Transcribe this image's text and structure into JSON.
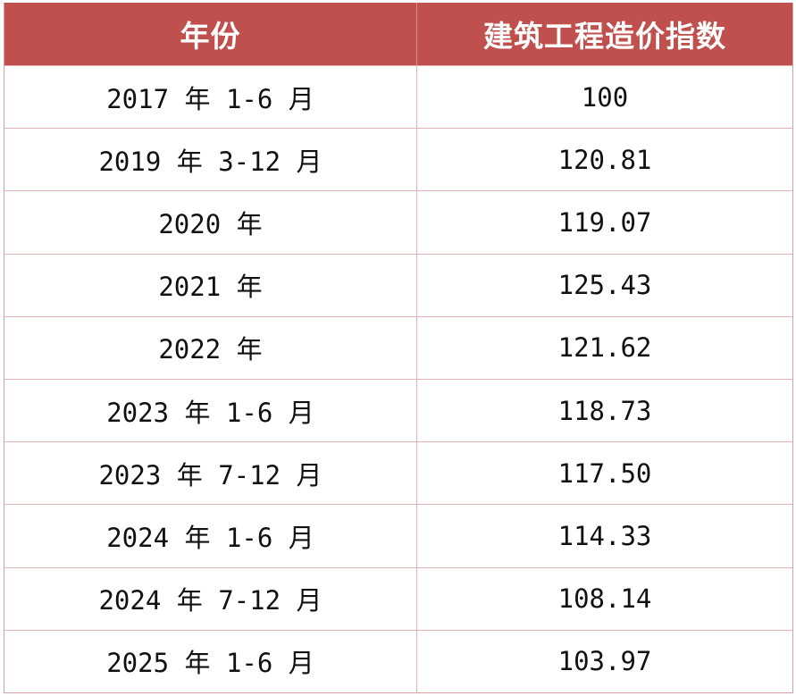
{
  "table": {
    "headers": {
      "year": "年份",
      "index": "建筑工程造价指数"
    },
    "rows": [
      {
        "year": "2017 年 1-6 月",
        "index": "100"
      },
      {
        "year": "2019 年 3-12 月",
        "index": "120.81"
      },
      {
        "year": "2020 年",
        "index": "119.07"
      },
      {
        "year": "2021 年",
        "index": "125.43"
      },
      {
        "year": "2022 年",
        "index": "121.62"
      },
      {
        "year": "2023 年 1-6 月",
        "index": "118.73"
      },
      {
        "year": "2023 年 7-12 月",
        "index": "117.50"
      },
      {
        "year": "2024 年 1-6 月",
        "index": "114.33"
      },
      {
        "year": "2024 年 7-12 月",
        "index": "108.14"
      },
      {
        "year": "2025 年 1-6 月",
        "index": "103.97"
      }
    ],
    "colors": {
      "header_bg": "#c0504d",
      "header_text": "#ffffff",
      "border": "#e3b3b5"
    }
  }
}
